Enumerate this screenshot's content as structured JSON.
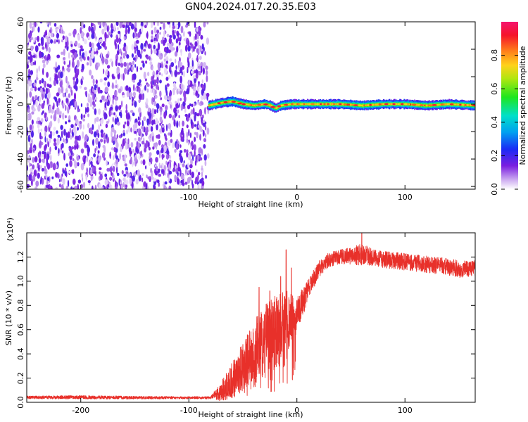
{
  "figure_title": "GN04.2024.017.20.35.E03",
  "chart_data": [
    {
      "type": "heatmap",
      "title": "GN04.2024.017.20.35.E03",
      "xlabel": "Height of straight line (km)",
      "ylabel": "Frequency (Hz)",
      "xlim": [
        -250,
        165
      ],
      "ylim": [
        -62,
        60
      ],
      "x_ticks": [
        -200,
        -100,
        0,
        100
      ],
      "x_tick_labels": [
        "-200",
        "-100",
        "0",
        "100"
      ],
      "y_ticks": [
        -60,
        -40,
        -20,
        0,
        20,
        40,
        60
      ],
      "y_tick_labels": [
        "-60",
        "-40",
        "-20",
        "0",
        "20",
        "40",
        "60"
      ],
      "colorbar": {
        "label": "Normalized spectral amplitude",
        "range": [
          0,
          1
        ],
        "ticks": [
          0.0,
          0.2,
          0.4,
          0.6,
          0.8
        ],
        "tick_labels": [
          "0.0",
          "0.2",
          "0.4",
          "0.6",
          "0.8"
        ],
        "colormap": "rainbow (white-purple-blue-cyan-green-yellow-orange-red-pink)"
      },
      "regions": [
        {
          "x_range": [
            -250,
            -82
          ],
          "freq_range": [
            -62,
            60
          ],
          "amplitude": [
            0.0,
            0.25
          ],
          "description": "noise"
        },
        {
          "x_range": [
            -82,
            165
          ],
          "freq_center": 0,
          "freq_halfwidth": 3,
          "amplitude": [
            0.2,
            0.95
          ],
          "description": "carrier"
        }
      ],
      "carrier_center": [
        [
          -82,
          -1
        ],
        [
          -70,
          1
        ],
        [
          -60,
          2
        ],
        [
          -50,
          0
        ],
        [
          -40,
          -1
        ],
        [
          -30,
          0
        ],
        [
          -25,
          -1
        ],
        [
          -20,
          -3
        ],
        [
          -15,
          -1
        ],
        [
          -5,
          0
        ],
        [
          0,
          0
        ],
        [
          20,
          0
        ],
        [
          40,
          0
        ],
        [
          60,
          -1
        ],
        [
          80,
          0
        ],
        [
          100,
          0
        ],
        [
          120,
          -1
        ],
        [
          140,
          0
        ],
        [
          165,
          -1
        ]
      ],
      "grid": false
    },
    {
      "type": "line",
      "xlabel": "Height of straight line (km)",
      "ylabel": "SNR (10 * v/v)",
      "y_multiplier": "(x10⁴)",
      "xlim": [
        -250,
        165
      ],
      "ylim": [
        0,
        14000
      ],
      "x_ticks": [
        -200,
        -100,
        0,
        100
      ],
      "x_tick_labels": [
        "-200",
        "-100",
        "0",
        "100"
      ],
      "y_ticks": [
        0,
        2000,
        4000,
        6000,
        8000,
        10000,
        12000
      ],
      "y_tick_labels": [
        "0.0",
        "0.2",
        "0.4",
        "0.6",
        "0.8",
        "1.0",
        "1.2"
      ],
      "color": "#e8302a",
      "series": [
        {
          "x": [
            -250,
            -200,
            -150,
            -100,
            -80,
            -70,
            -60,
            -50,
            -40,
            -30,
            -20,
            -10,
            0,
            10,
            20,
            30,
            40,
            50,
            60,
            70,
            80,
            90,
            100,
            110,
            120,
            130,
            140,
            150,
            165
          ],
          "values": [
            400,
            420,
            380,
            380,
            380,
            900,
            1800,
            3000,
            4300,
            5200,
            5800,
            6300,
            7200,
            9200,
            11000,
            11800,
            12000,
            12100,
            12200,
            12000,
            11800,
            11700,
            11600,
            11500,
            11400,
            11300,
            11200,
            11000,
            11000
          ],
          "spread": [
            120,
            150,
            120,
            100,
            100,
            800,
            1500,
            2000,
            2500,
            2800,
            3000,
            3000,
            1500,
            900,
            700,
            600,
            600,
            700,
            900,
            700,
            700,
            700,
            700,
            700,
            700,
            700,
            700,
            700,
            700
          ]
        }
      ],
      "peaks": [
        [
          -10,
          12600
        ],
        [
          -35,
          9500
        ],
        [
          -25,
          9200
        ],
        [
          -15,
          10400
        ],
        [
          -5,
          11100
        ],
        [
          60,
          14000
        ]
      ],
      "grid": false
    }
  ]
}
